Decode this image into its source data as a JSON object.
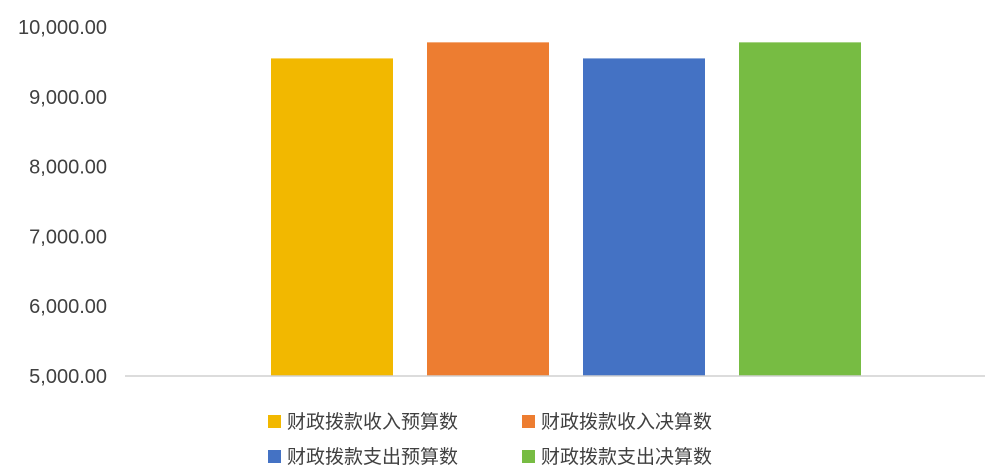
{
  "chart_data": {
    "type": "bar",
    "title": "",
    "xlabel": "",
    "ylabel": "",
    "ylim": [
      5000,
      10000
    ],
    "yticks": [
      "5,000.00",
      "6,000.00",
      "7,000.00",
      "8,000.00",
      "9,000.00",
      "10,000.00"
    ],
    "ytick_values": [
      5000,
      6000,
      7000,
      8000,
      9000,
      10000
    ],
    "grid": false,
    "legend_placement": "bottom",
    "series": [
      {
        "name": "财政拨款收入预算数",
        "value": 9550,
        "color": "#F2B800"
      },
      {
        "name": "财政拨款收入决算数",
        "value": 9780,
        "color": "#ED7D31"
      },
      {
        "name": "财政拨款支出预算数",
        "value": 9550,
        "color": "#4472C4"
      },
      {
        "name": "财政拨款支出决算数",
        "value": 9780,
        "color": "#77BC43"
      }
    ]
  }
}
